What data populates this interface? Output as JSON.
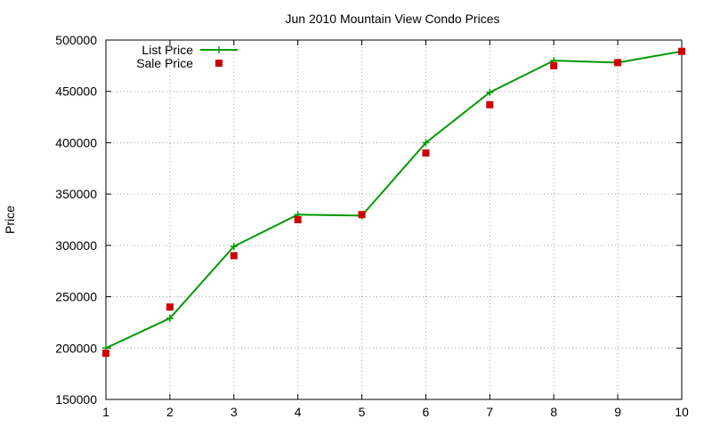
{
  "chart_data": {
    "type": "line",
    "title": "Jun 2010 Mountain View Condo Prices",
    "xlabel": "",
    "ylabel": "Price",
    "x": [
      1,
      2,
      3,
      4,
      5,
      6,
      7,
      8,
      9,
      10
    ],
    "xlim": [
      1,
      10
    ],
    "ylim": [
      150000,
      500000
    ],
    "x_ticks": [
      "1",
      "2",
      "3",
      "4",
      "5",
      "6",
      "7",
      "8",
      "9",
      "10"
    ],
    "y_ticks": [
      "150000",
      "200000",
      "250000",
      "300000",
      "350000",
      "400000",
      "450000",
      "500000"
    ],
    "grid": true,
    "legend_position": "top-left",
    "series": [
      {
        "name": "List Price",
        "style": "line-with-plus-markers",
        "color": "#009900",
        "values": [
          200000,
          229000,
          299000,
          330000,
          329000,
          400000,
          449000,
          480000,
          478000,
          489000
        ]
      },
      {
        "name": "Sale Price",
        "style": "square-markers",
        "color": "#cc0000",
        "values": [
          195000,
          240000,
          290000,
          325000,
          330000,
          390000,
          437000,
          475000,
          478000,
          489000
        ]
      }
    ]
  }
}
